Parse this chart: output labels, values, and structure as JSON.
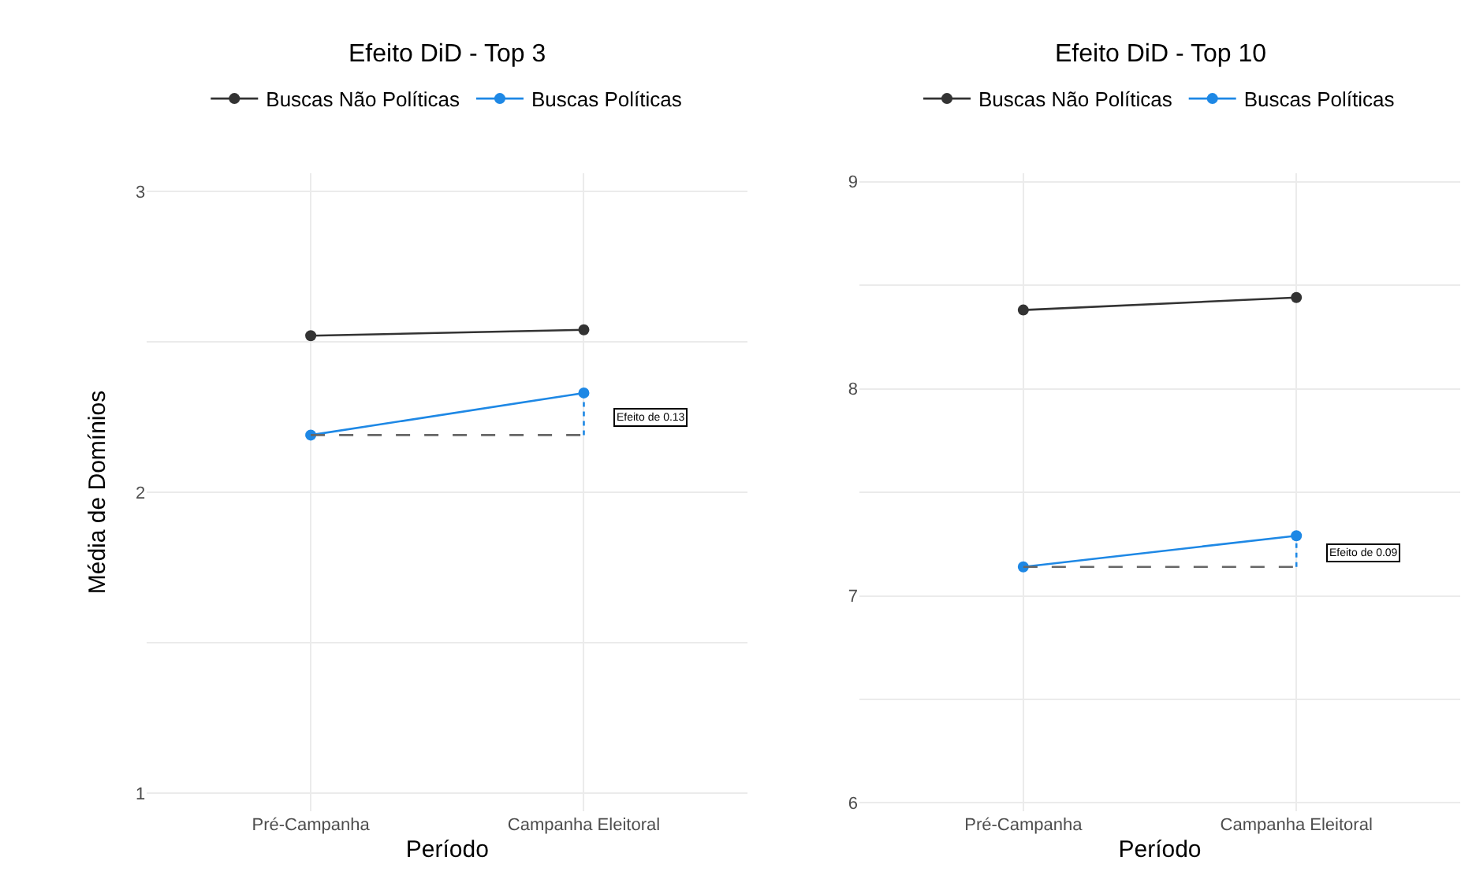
{
  "chart_data": [
    {
      "type": "line",
      "title": "Efeito DiD - Top 3",
      "xlabel": "Período",
      "ylabel": "Média de Domínios",
      "categories": [
        "Pré-Campanha",
        "Campanha Eleitoral"
      ],
      "ylim": [
        0.94,
        3.06
      ],
      "yticks": [
        1,
        {
          "value": 1.5,
          "label": null
        },
        2,
        {
          "value": 2.5,
          "label": null
        },
        3
      ],
      "grid": true,
      "legend": "top",
      "marker": "circle",
      "line_style": "solid",
      "series": [
        {
          "name": "Buscas Não Políticas",
          "color": "#333333",
          "values": [
            2.52,
            2.54
          ]
        },
        {
          "name": "Buscas Políticas",
          "color": "#1e88e5",
          "values": [
            2.19,
            2.33
          ]
        },
        {
          "color": "#666666",
          "values": [
            2.19,
            2.19
          ],
          "line_style": "dashed",
          "marker": "none"
        },
        {
          "color": "#1e88e5",
          "x": [
            "Campanha Eleitoral",
            "Campanha Eleitoral"
          ],
          "values": [
            2.19,
            2.33
          ],
          "line_style": "dotted",
          "marker": "none"
        }
      ],
      "annotations": [
        {
          "text": "Efeito de 0.13",
          "x": "Campanha Eleitoral",
          "y": 2.25
        }
      ]
    },
    {
      "type": "line",
      "title": "Efeito DiD - Top 10",
      "xlabel": "Período",
      "categories": [
        "Pré-Campanha",
        "Campanha Eleitoral"
      ],
      "ylim": [
        5.96,
        9.04
      ],
      "yticks": [
        6,
        {
          "value": 6.5,
          "label": null
        },
        7,
        {
          "value": 7.5,
          "label": null
        },
        8,
        {
          "value": 8.5,
          "label": null
        },
        9
      ],
      "grid": true,
      "legend": "top",
      "marker": "circle",
      "line_style": "solid",
      "series": [
        {
          "name": "Buscas Não Políticas",
          "color": "#333333",
          "values": [
            8.38,
            8.44
          ]
        },
        {
          "name": "Buscas Políticas",
          "color": "#1e88e5",
          "values": [
            7.14,
            7.29
          ]
        },
        {
          "color": "#666666",
          "values": [
            7.14,
            7.14
          ],
          "line_style": "dashed",
          "marker": "none"
        },
        {
          "color": "#1e88e5",
          "x": [
            "Campanha Eleitoral",
            "Campanha Eleitoral"
          ],
          "values": [
            7.14,
            7.29
          ],
          "line_style": "dotted",
          "marker": "none"
        }
      ],
      "annotations": [
        {
          "text": "Efeito de 0.09",
          "x": "Campanha Eleitoral",
          "y": 7.21
        }
      ]
    }
  ]
}
